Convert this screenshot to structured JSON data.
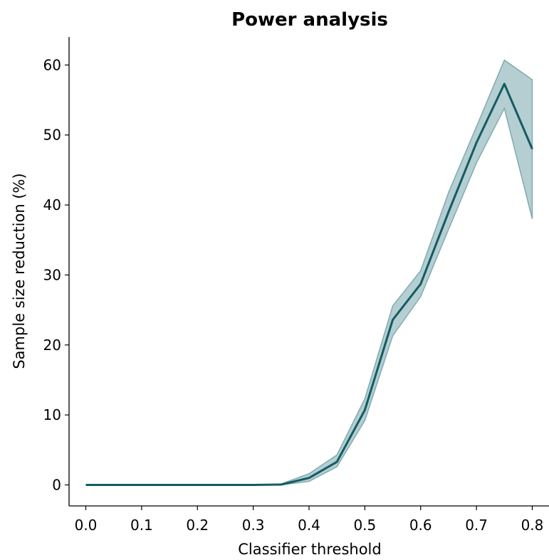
{
  "chart_data": {
    "type": "line",
    "title": "Power analysis",
    "xlabel": "Classifier threshold",
    "ylabel": "Sample size reduction (%)",
    "xlim": [
      -0.03,
      0.83
    ],
    "ylim": [
      -3,
      64
    ],
    "xticks": [
      "0.0",
      "0.1",
      "0.2",
      "0.3",
      "0.4",
      "0.5",
      "0.6",
      "0.7",
      "0.8"
    ],
    "yticks": [
      "0",
      "10",
      "20",
      "30",
      "40",
      "50",
      "60"
    ],
    "grid": false,
    "line_color": "#135c63",
    "band_color": "#6b9ea3",
    "series": [
      {
        "x": [
          0.0,
          0.05,
          0.1,
          0.15,
          0.2,
          0.25,
          0.3,
          0.35,
          0.4,
          0.45,
          0.5,
          0.55,
          0.6,
          0.65,
          0.7,
          0.75,
          0.8
        ],
        "y": [
          0,
          0,
          0,
          0,
          0,
          0,
          0,
          0.05,
          1.0,
          3.3,
          10.7,
          23.6,
          28.7,
          39.0,
          48.9,
          57.3,
          48.0
        ],
        "lower": [
          0,
          0,
          0,
          0,
          0,
          0,
          0,
          0,
          0.5,
          2.6,
          9.2,
          21.3,
          26.9,
          36.5,
          46.0,
          53.8,
          38.0
        ],
        "upper": [
          0,
          0,
          0,
          0,
          0,
          0,
          0,
          0.15,
          1.6,
          4.3,
          12.3,
          25.6,
          30.6,
          41.8,
          51.2,
          60.7,
          57.9
        ]
      }
    ]
  }
}
